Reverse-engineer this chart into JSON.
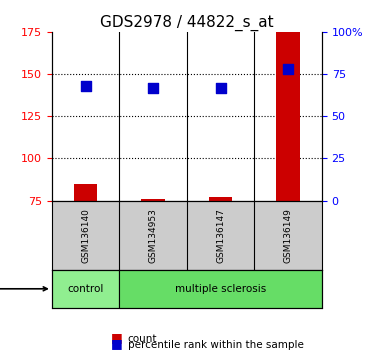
{
  "title": "GDS2978 / 44822_s_at",
  "samples": [
    "GSM136140",
    "GSM134953",
    "GSM136147",
    "GSM136149"
  ],
  "count_values": [
    85,
    76,
    77,
    175
  ],
  "percentile_values": [
    68,
    67,
    67,
    78
  ],
  "ymin": 75,
  "ymax": 175,
  "yticks_left": [
    75,
    100,
    125,
    150,
    175
  ],
  "yticks_right": [
    0,
    25,
    50,
    75,
    100
  ],
  "bar_color": "#cc0000",
  "dot_color": "#0000cc",
  "control_color": "#90ee90",
  "ms_color": "#66dd66",
  "sample_label_bg": "#cccccc",
  "dot_size": 55,
  "bar_width": 0.35
}
